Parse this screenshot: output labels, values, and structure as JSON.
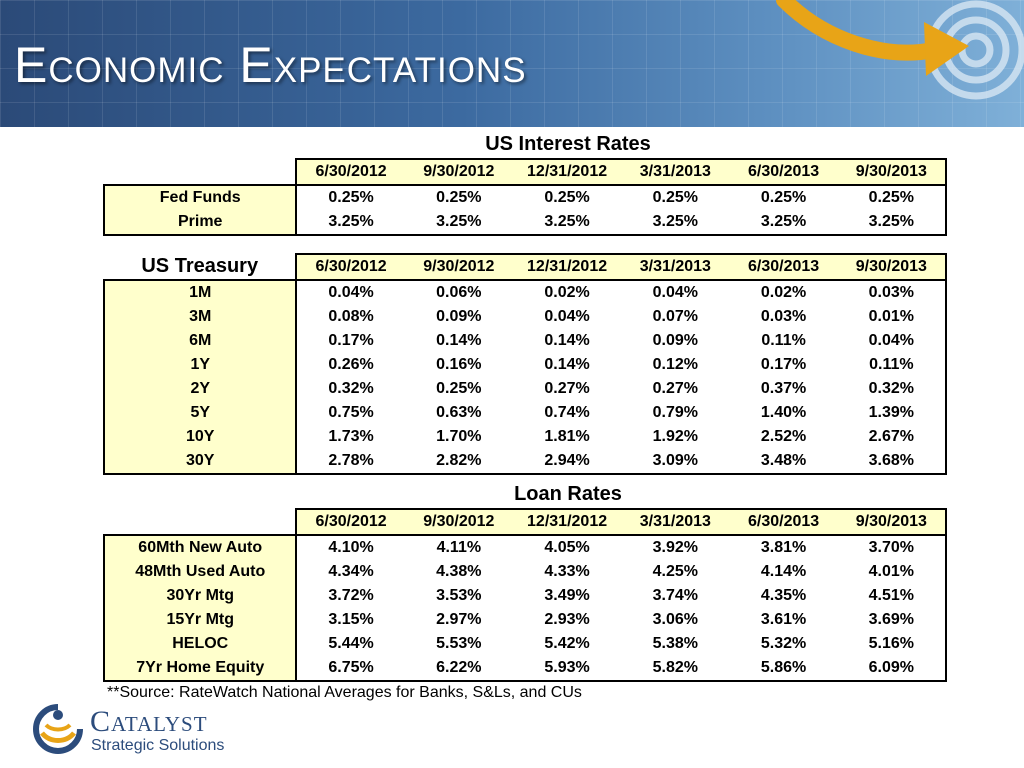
{
  "title": "Economic Expectations",
  "dates": [
    "6/30/2012",
    "9/30/2012",
    "12/31/2012",
    "3/31/2013",
    "6/30/2013",
    "9/30/2013"
  ],
  "interest_rates": {
    "title": "US Interest Rates",
    "rows": [
      {
        "label": "Fed Funds",
        "values": [
          "0.25%",
          "0.25%",
          "0.25%",
          "0.25%",
          "0.25%",
          "0.25%"
        ]
      },
      {
        "label": "Prime",
        "values": [
          "3.25%",
          "3.25%",
          "3.25%",
          "3.25%",
          "3.25%",
          "3.25%"
        ]
      }
    ]
  },
  "treasury": {
    "title": "US Treasury",
    "rows": [
      {
        "label": "1M",
        "values": [
          "0.04%",
          "0.06%",
          "0.02%",
          "0.04%",
          "0.02%",
          "0.03%"
        ]
      },
      {
        "label": "3M",
        "values": [
          "0.08%",
          "0.09%",
          "0.04%",
          "0.07%",
          "0.03%",
          "0.01%"
        ]
      },
      {
        "label": "6M",
        "values": [
          "0.17%",
          "0.14%",
          "0.14%",
          "0.09%",
          "0.11%",
          "0.04%"
        ]
      },
      {
        "label": "1Y",
        "values": [
          "0.26%",
          "0.16%",
          "0.14%",
          "0.12%",
          "0.17%",
          "0.11%"
        ]
      },
      {
        "label": "2Y",
        "values": [
          "0.32%",
          "0.25%",
          "0.27%",
          "0.27%",
          "0.37%",
          "0.32%"
        ]
      },
      {
        "label": "5Y",
        "values": [
          "0.75%",
          "0.63%",
          "0.74%",
          "0.79%",
          "1.40%",
          "1.39%"
        ]
      },
      {
        "label": "10Y",
        "values": [
          "1.73%",
          "1.70%",
          "1.81%",
          "1.92%",
          "2.52%",
          "2.67%"
        ]
      },
      {
        "label": "30Y",
        "values": [
          "2.78%",
          "2.82%",
          "2.94%",
          "3.09%",
          "3.48%",
          "3.68%"
        ]
      }
    ]
  },
  "loan_rates": {
    "title": "Loan Rates",
    "rows": [
      {
        "label": "60Mth New Auto",
        "values": [
          "4.10%",
          "4.11%",
          "4.05%",
          "3.92%",
          "3.81%",
          "3.70%"
        ]
      },
      {
        "label": "48Mth Used Auto",
        "values": [
          "4.34%",
          "4.38%",
          "4.33%",
          "4.25%",
          "4.14%",
          "4.01%"
        ]
      },
      {
        "label": "30Yr Mtg",
        "values": [
          "3.72%",
          "3.53%",
          "3.49%",
          "3.74%",
          "4.35%",
          "4.51%"
        ]
      },
      {
        "label": "15Yr Mtg",
        "values": [
          "3.15%",
          "2.97%",
          "2.93%",
          "3.06%",
          "3.61%",
          "3.69%"
        ]
      },
      {
        "label": "HELOC",
        "values": [
          "5.44%",
          "5.53%",
          "5.42%",
          "5.38%",
          "5.32%",
          "5.16%"
        ]
      },
      {
        "label": "7Yr Home Equity",
        "values": [
          "6.75%",
          "6.22%",
          "5.93%",
          "5.82%",
          "5.86%",
          "6.09%"
        ]
      }
    ]
  },
  "source_note": "**Source: RateWatch National Averages for Banks, S&Ls, and CUs",
  "logo": {
    "name": "Catalyst",
    "tagline": "Strategic Solutions"
  },
  "colors": {
    "label_fill": "#ffffcc",
    "banner": "#3c6aa0",
    "logo_blue": "#2c4c7c",
    "logo_gold": "#e8a417"
  },
  "icons": [
    "target-icon",
    "arrow-icon",
    "catalyst-logo-icon"
  ]
}
